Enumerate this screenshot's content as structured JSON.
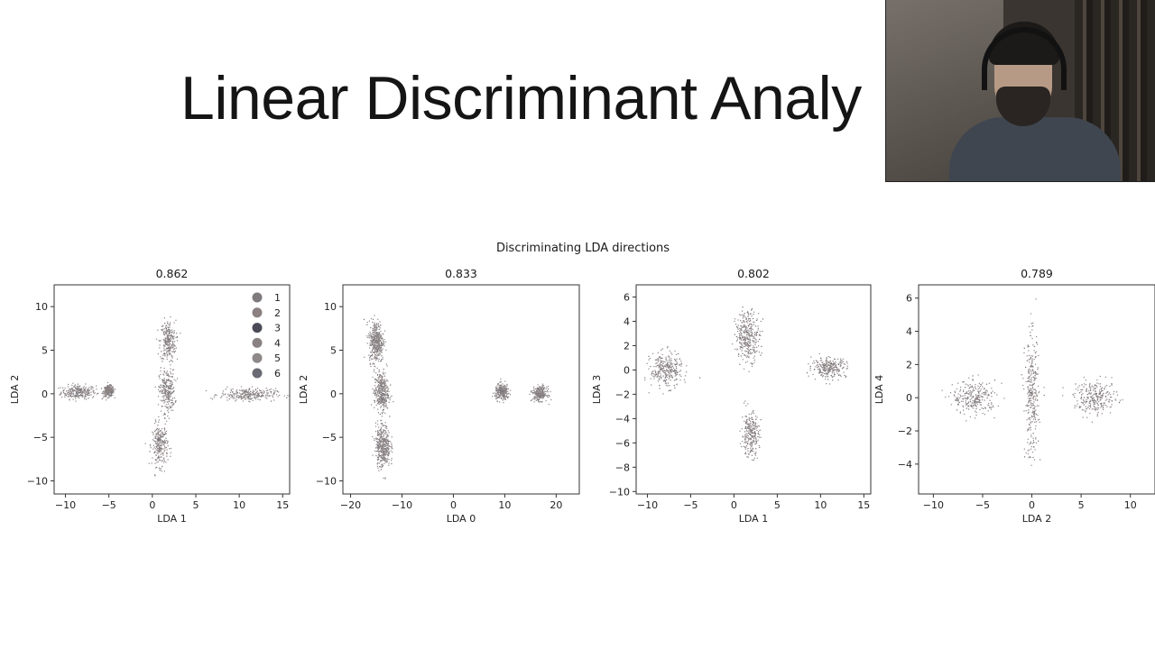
{
  "slide": {
    "title": "Linear Discriminant Analy"
  },
  "chart_data": {
    "figure_title": "Discriminating LDA directions",
    "plots": [
      {
        "type": "scatter",
        "title": "0.862",
        "xlabel": "LDA 1",
        "ylabel": "LDA 2",
        "xlim": [
          -11.3,
          15.8
        ],
        "ylim": [
          -11.5,
          12.5
        ],
        "xticks": [
          -10,
          -5,
          0,
          5,
          10,
          15
        ],
        "yticks": [
          -10,
          -5,
          0,
          5,
          10
        ],
        "legend": {
          "placement": "top-right",
          "entries": [
            "1",
            "2",
            "3",
            "4",
            "5",
            "6"
          ]
        },
        "clusters": [
          {
            "cx": -8.5,
            "cy": 0.2,
            "sx": 1.0,
            "sy": 0.4
          },
          {
            "cx": -5.0,
            "cy": 0.3,
            "sx": 0.3,
            "sy": 0.3
          },
          {
            "cx": 1.8,
            "cy": 6.0,
            "sx": 0.45,
            "sy": 1.2
          },
          {
            "cx": 1.7,
            "cy": 0.3,
            "sx": 0.45,
            "sy": 1.2
          },
          {
            "cx": 0.9,
            "cy": -5.9,
            "sx": 0.45,
            "sy": 1.2
          },
          {
            "cx": 11.0,
            "cy": -0.1,
            "sx": 1.6,
            "sy": 0.35
          }
        ]
      },
      {
        "type": "scatter",
        "title": "0.833",
        "xlabel": "LDA 0",
        "ylabel": "LDA 2",
        "xlim": [
          -21.5,
          24.5
        ],
        "ylim": [
          -11.5,
          12.5
        ],
        "xticks": [
          -20,
          -10,
          0,
          10,
          20
        ],
        "yticks": [
          -10,
          -5,
          0,
          5,
          10
        ],
        "clusters": [
          {
            "cx": -15.0,
            "cy": 6.0,
            "sx": 0.7,
            "sy": 1.2
          },
          {
            "cx": -14.0,
            "cy": 0.2,
            "sx": 0.7,
            "sy": 1.1
          },
          {
            "cx": -13.7,
            "cy": -6.0,
            "sx": 0.7,
            "sy": 1.2
          },
          {
            "cx": 9.5,
            "cy": 0.2,
            "sx": 0.7,
            "sy": 0.45
          },
          {
            "cx": 16.8,
            "cy": 0.0,
            "sx": 0.7,
            "sy": 0.4
          }
        ]
      },
      {
        "type": "scatter",
        "title": "0.802",
        "xlabel": "LDA 1",
        "ylabel": "LDA 3",
        "xlim": [
          -11.3,
          15.8
        ],
        "ylim": [
          -10.2,
          7.0
        ],
        "xticks": [
          -10,
          -5,
          0,
          5,
          10,
          15
        ],
        "yticks": [
          -10,
          -8,
          -6,
          -4,
          -2,
          0,
          2,
          4,
          6
        ],
        "clusters": [
          {
            "cx": -7.8,
            "cy": 0.0,
            "sx": 0.9,
            "sy": 0.7
          },
          {
            "cx": 1.6,
            "cy": 2.8,
            "sx": 0.7,
            "sy": 1.0
          },
          {
            "cx": 1.9,
            "cy": -5.3,
            "sx": 0.5,
            "sy": 0.9
          },
          {
            "cx": 11.0,
            "cy": 0.2,
            "sx": 1.0,
            "sy": 0.4
          }
        ]
      },
      {
        "type": "scatter",
        "title": "0.789",
        "xlabel": "LDA 2",
        "ylabel": "LDA 4",
        "xlim": [
          -11.5,
          12.5
        ],
        "ylim": [
          -5.8,
          6.8
        ],
        "xticks": [
          -10,
          -5,
          0,
          5,
          10
        ],
        "yticks": [
          -4,
          -2,
          0,
          2,
          4,
          6
        ],
        "clusters": [
          {
            "cx": -5.8,
            "cy": 0.0,
            "sx": 1.1,
            "sy": 0.5
          },
          {
            "cx": 0.0,
            "cy": 0.0,
            "sx": 0.35,
            "sy": 1.8
          },
          {
            "cx": 6.5,
            "cy": 0.0,
            "sx": 1.1,
            "sy": 0.5
          }
        ]
      }
    ]
  },
  "colors": {
    "points": "#8e8585",
    "points_dark": "#6f6f7a",
    "axes": "#333333"
  }
}
